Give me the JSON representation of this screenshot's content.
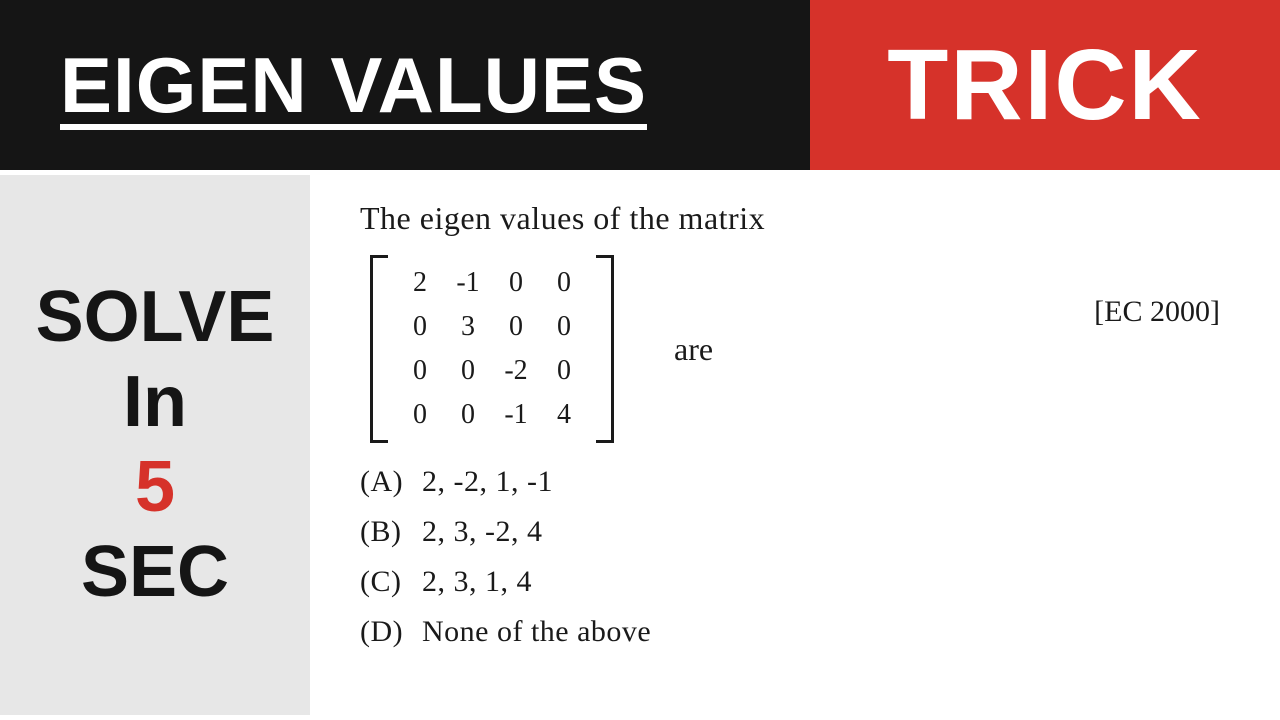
{
  "header": {
    "title": "EIGEN VALUES",
    "trick": "TRICK",
    "title_bg": "#151515",
    "trick_bg": "#d6322a",
    "text_color": "#ffffff"
  },
  "sidebar": {
    "bg": "#e7e7e7",
    "lines": {
      "l1": "SOLVE",
      "l2": "In",
      "l3": "5",
      "l4": "SEC"
    },
    "accent_color": "#d6322a"
  },
  "content": {
    "question": "The eigen values of the matrix",
    "matrix": {
      "rows": 4,
      "cols": 4,
      "cells": [
        [
          "2",
          "-1",
          "0",
          "0"
        ],
        [
          "0",
          "3",
          "0",
          "0"
        ],
        [
          "0",
          "0",
          "-2",
          "0"
        ],
        [
          "0",
          "0",
          "-1",
          "4"
        ]
      ]
    },
    "are_text": "are",
    "tag": "[EC 2000]",
    "options": [
      {
        "label": "(A)",
        "text": "2, -2, 1, -1"
      },
      {
        "label": "(B)",
        "text": "2, 3, -2, 4"
      },
      {
        "label": "(C)",
        "text": "2, 3, 1, 4"
      },
      {
        "label": "(D)",
        "text": "None of the above"
      }
    ]
  },
  "style": {
    "handwriting_font": "Comic Sans MS",
    "ink_color": "#1a1a1a"
  }
}
